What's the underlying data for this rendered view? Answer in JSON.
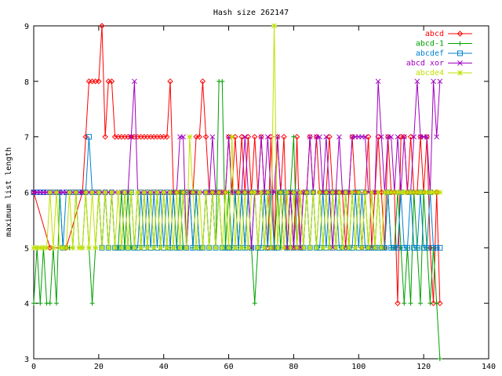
{
  "chart_data": {
    "type": "line",
    "title": "Hash size 262147",
    "xlabel": "",
    "ylabel": "maximum list length",
    "xlim": [
      0,
      140
    ],
    "ylim": [
      3,
      9
    ],
    "xticks": [
      0,
      20,
      40,
      60,
      80,
      100,
      120,
      140
    ],
    "yticks": [
      3,
      4,
      5,
      6,
      7,
      8,
      9
    ],
    "grid": false,
    "legend_position": "top-right",
    "series": [
      {
        "name": "abcd",
        "color": "#ff0000",
        "marker": "diamond",
        "x": [
          0,
          5,
          10,
          15,
          16,
          17,
          18,
          19,
          20,
          21,
          22,
          23,
          24,
          25,
          26,
          27,
          28,
          29,
          30,
          31,
          32,
          33,
          34,
          35,
          36,
          37,
          38,
          39,
          40,
          41,
          42,
          43,
          44,
          45,
          46,
          47,
          48,
          49,
          50,
          51,
          52,
          53,
          54,
          55,
          56,
          57,
          58,
          59,
          60,
          61,
          62,
          63,
          64,
          65,
          66,
          67,
          68,
          69,
          70,
          71,
          72,
          73,
          74,
          75,
          76,
          77,
          78,
          79,
          80,
          81,
          82,
          83,
          84,
          85,
          86,
          87,
          88,
          89,
          90,
          91,
          92,
          93,
          94,
          95,
          96,
          97,
          98,
          99,
          100,
          101,
          102,
          103,
          104,
          105,
          106,
          107,
          108,
          109,
          110,
          111,
          112,
          113,
          114,
          115,
          116,
          117,
          118,
          119,
          120,
          121,
          122,
          123,
          124,
          125
        ],
        "y": [
          6,
          5,
          5,
          6,
          7,
          8,
          8,
          8,
          8,
          9,
          7,
          8,
          8,
          7,
          7,
          7,
          7,
          7,
          7,
          7,
          7,
          7,
          7,
          7,
          7,
          7,
          7,
          7,
          7,
          7,
          8,
          6,
          6,
          6,
          6,
          6,
          6,
          6,
          7,
          7,
          8,
          7,
          6,
          6,
          6,
          6,
          6,
          6,
          7,
          6,
          7,
          6,
          7,
          6,
          7,
          6,
          7,
          6,
          7,
          6,
          5,
          7,
          5,
          7,
          6,
          7,
          5,
          6,
          5,
          7,
          5,
          6,
          6,
          7,
          6,
          7,
          6,
          6,
          6,
          7,
          6,
          6,
          6,
          6,
          5,
          6,
          7,
          6,
          6,
          5,
          6,
          7,
          5,
          6,
          7,
          6,
          5,
          7,
          6,
          6,
          4,
          7,
          7,
          6,
          7,
          6,
          6,
          7,
          6,
          7,
          5,
          4,
          6,
          4
        ],
        "note": "x values are read in order; 1-unit steps"
      },
      {
        "name": "abcd-1",
        "color": "#00a000",
        "marker": "plus",
        "x": [
          0,
          1,
          2,
          3,
          4,
          5,
          6,
          7,
          8,
          9,
          10,
          11,
          12,
          13,
          14,
          15,
          16,
          17,
          18,
          19,
          20,
          21,
          22,
          23,
          24,
          25,
          26,
          27,
          28,
          29,
          30,
          31,
          32,
          33,
          34,
          35,
          36,
          37,
          38,
          39,
          40,
          41,
          42,
          43,
          44,
          45,
          46,
          47,
          48,
          49,
          50,
          51,
          52,
          53,
          54,
          55,
          56,
          57,
          58,
          59,
          60,
          61,
          62,
          63,
          64,
          65,
          66,
          67,
          68,
          69,
          70,
          71,
          72,
          73,
          74,
          75,
          76,
          77,
          78,
          79,
          80,
          81,
          82,
          83,
          84,
          85,
          86,
          87,
          88,
          89,
          90,
          91,
          92,
          93,
          94,
          95,
          96,
          97,
          98,
          99,
          100,
          101,
          102,
          103,
          104,
          105,
          106,
          107,
          108,
          109,
          110,
          111,
          112,
          113,
          114,
          115,
          116,
          117,
          118,
          119,
          120,
          121,
          122,
          123,
          124,
          125
        ],
        "y": [
          4,
          5,
          4,
          5,
          4,
          4,
          5,
          4,
          6,
          5,
          5,
          5,
          5,
          6,
          5,
          5,
          6,
          5,
          4,
          5,
          6,
          5,
          6,
          5,
          6,
          5,
          5,
          6,
          5,
          6,
          5,
          5,
          6,
          5,
          6,
          5,
          6,
          5,
          6,
          5,
          6,
          5,
          5,
          6,
          5,
          6,
          5,
          5,
          6,
          5,
          6,
          5,
          5,
          6,
          5,
          6,
          5,
          8,
          8,
          5,
          6,
          5,
          6,
          5,
          6,
          5,
          6,
          5,
          4,
          5,
          6,
          5,
          6,
          5,
          5,
          6,
          5,
          6,
          5,
          6,
          7,
          5,
          6,
          5,
          6,
          5,
          6,
          5,
          6,
          5,
          6,
          5,
          6,
          5,
          6,
          5,
          6,
          5,
          6,
          5,
          6,
          5,
          6,
          5,
          6,
          5,
          6,
          5,
          5,
          6,
          5,
          5,
          6,
          5,
          4,
          5,
          4,
          6,
          5,
          4,
          6,
          5,
          4,
          5,
          4,
          3
        ]
      },
      {
        "name": "abcdef",
        "color": "#0080d0",
        "marker": "square",
        "x": [
          0,
          1,
          2,
          3,
          4,
          5,
          6,
          7,
          8,
          9,
          10,
          11,
          12,
          13,
          14,
          15,
          16,
          17,
          18,
          19,
          20,
          21,
          22,
          23,
          24,
          25,
          26,
          27,
          28,
          29,
          30,
          31,
          32,
          33,
          34,
          35,
          36,
          37,
          38,
          39,
          40,
          41,
          42,
          43,
          44,
          45,
          46,
          47,
          48,
          49,
          50,
          51,
          52,
          53,
          54,
          55,
          56,
          57,
          58,
          59,
          60,
          61,
          62,
          63,
          64,
          65,
          66,
          67,
          68,
          69,
          70,
          71,
          72,
          73,
          74,
          75,
          76,
          77,
          78,
          79,
          80,
          81,
          82,
          83,
          84,
          85,
          86,
          87,
          88,
          89,
          90,
          91,
          92,
          93,
          94,
          95,
          96,
          97,
          98,
          99,
          100,
          101,
          102,
          103,
          104,
          105,
          106,
          107,
          108,
          109,
          110,
          111,
          112,
          113,
          114,
          115,
          116,
          117,
          118,
          119,
          120,
          121,
          122,
          123,
          124,
          125
        ],
        "y": [
          6,
          6,
          6,
          6,
          6,
          6,
          6,
          6,
          6,
          5,
          6,
          6,
          6,
          6,
          6,
          6,
          6,
          7,
          6,
          6,
          6,
          5,
          6,
          5,
          6,
          5,
          5,
          5,
          6,
          5,
          6,
          5,
          5,
          6,
          5,
          6,
          5,
          6,
          5,
          6,
          5,
          6,
          5,
          6,
          5,
          5,
          6,
          5,
          6,
          5,
          6,
          5,
          5,
          6,
          5,
          6,
          5,
          6,
          5,
          5,
          5,
          5,
          6,
          5,
          6,
          5,
          6,
          5,
          6,
          5,
          5,
          6,
          5,
          6,
          5,
          5,
          6,
          6,
          5,
          6,
          5,
          6,
          5,
          5,
          6,
          5,
          6,
          5,
          5,
          6,
          5,
          6,
          5,
          6,
          5,
          5,
          6,
          5,
          5,
          6,
          5,
          6,
          5,
          5,
          5,
          5,
          5,
          5,
          5,
          6,
          5,
          5,
          5,
          6,
          5,
          5,
          6,
          5,
          5,
          6,
          5,
          5,
          6,
          5,
          5,
          5
        ]
      },
      {
        "name": "abcd xor",
        "color": "#a000c0",
        "marker": "cross",
        "x": [
          0,
          1,
          2,
          3,
          4,
          5,
          6,
          7,
          8,
          9,
          10,
          11,
          12,
          13,
          14,
          15,
          16,
          17,
          18,
          19,
          20,
          21,
          22,
          23,
          24,
          25,
          26,
          27,
          28,
          29,
          30,
          31,
          32,
          33,
          34,
          35,
          36,
          37,
          38,
          39,
          40,
          41,
          42,
          43,
          44,
          45,
          46,
          47,
          48,
          49,
          50,
          51,
          52,
          53,
          54,
          55,
          56,
          57,
          58,
          59,
          60,
          61,
          62,
          63,
          64,
          65,
          66,
          67,
          68,
          69,
          70,
          71,
          72,
          73,
          74,
          75,
          76,
          77,
          78,
          79,
          80,
          81,
          82,
          83,
          84,
          85,
          86,
          87,
          88,
          89,
          90,
          91,
          92,
          93,
          94,
          95,
          96,
          97,
          98,
          99,
          100,
          101,
          102,
          103,
          104,
          105,
          106,
          107,
          108,
          109,
          110,
          111,
          112,
          113,
          114,
          115,
          116,
          117,
          118,
          119,
          120,
          121,
          122,
          123,
          124,
          125
        ],
        "y": [
          6,
          6,
          6,
          6,
          6,
          6,
          6,
          6,
          6,
          6,
          6,
          6,
          6,
          6,
          6,
          6,
          6,
          6,
          6,
          6,
          6,
          6,
          6,
          6,
          6,
          6,
          6,
          6,
          6,
          6,
          7,
          8,
          6,
          6,
          6,
          6,
          6,
          6,
          6,
          6,
          6,
          6,
          6,
          6,
          6,
          7,
          7,
          5,
          6,
          6,
          6,
          6,
          6,
          6,
          6,
          7,
          6,
          6,
          6,
          6,
          7,
          6,
          6,
          6,
          6,
          7,
          6,
          5,
          6,
          6,
          7,
          6,
          7,
          6,
          6,
          7,
          6,
          5,
          5,
          6,
          5,
          6,
          5,
          6,
          6,
          7,
          6,
          7,
          7,
          6,
          7,
          6,
          5,
          6,
          7,
          6,
          6,
          6,
          7,
          7,
          7,
          7,
          7,
          6,
          6,
          6,
          8,
          7,
          6,
          7,
          7,
          6,
          7,
          6,
          7,
          6,
          6,
          7,
          8,
          7,
          7,
          7,
          6,
          8,
          7,
          8
        ]
      },
      {
        "name": "abcde4",
        "color": "#c0e000",
        "marker": "star",
        "x": [
          0,
          1,
          2,
          3,
          4,
          5,
          6,
          7,
          8,
          9,
          10,
          11,
          12,
          13,
          14,
          15,
          16,
          17,
          18,
          19,
          20,
          21,
          22,
          23,
          24,
          25,
          26,
          27,
          28,
          29,
          30,
          31,
          32,
          33,
          34,
          35,
          36,
          37,
          38,
          39,
          40,
          41,
          42,
          43,
          44,
          45,
          46,
          47,
          48,
          49,
          50,
          51,
          52,
          53,
          54,
          55,
          56,
          57,
          58,
          59,
          60,
          61,
          62,
          63,
          64,
          65,
          66,
          67,
          68,
          69,
          70,
          71,
          72,
          73,
          74,
          75,
          76,
          77,
          78,
          79,
          80,
          81,
          82,
          83,
          84,
          85,
          86,
          87,
          88,
          89,
          90,
          91,
          92,
          93,
          94,
          95,
          96,
          97,
          98,
          99,
          100,
          101,
          102,
          103,
          104,
          105,
          106,
          107,
          108,
          109,
          110,
          111,
          112,
          113,
          114,
          115,
          116,
          117,
          118,
          119,
          120,
          121,
          122,
          123,
          124,
          125
        ],
        "y": [
          5,
          5,
          5,
          5,
          5,
          6,
          5,
          6,
          5,
          5,
          5,
          6,
          5,
          6,
          5,
          5,
          6,
          5,
          6,
          5,
          6,
          5,
          6,
          5,
          6,
          5,
          6,
          5,
          6,
          5,
          6,
          5,
          6,
          5,
          6,
          5,
          6,
          5,
          6,
          5,
          6,
          5,
          6,
          5,
          6,
          5,
          6,
          5,
          7,
          6,
          5,
          6,
          5,
          6,
          5,
          6,
          5,
          6,
          5,
          6,
          5,
          7,
          5,
          6,
          5,
          6,
          5,
          6,
          6,
          5,
          6,
          5,
          6,
          5,
          9,
          5,
          6,
          5,
          6,
          5,
          6,
          5,
          6,
          5,
          6,
          5,
          6,
          5,
          6,
          5,
          6,
          5,
          6,
          5,
          6,
          5,
          6,
          5,
          6,
          5,
          6,
          5,
          6,
          5,
          6,
          5,
          6,
          5,
          6,
          6,
          6,
          6,
          6,
          6,
          6,
          6,
          6,
          6,
          6,
          6,
          6,
          6,
          6,
          6,
          6,
          6
        ]
      }
    ]
  }
}
